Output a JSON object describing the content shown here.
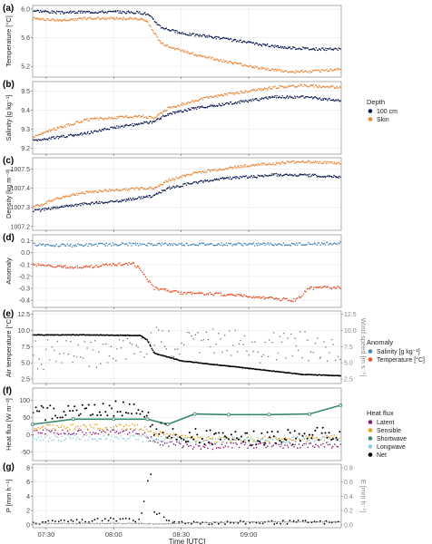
{
  "x_axis": {
    "label": "Time [UTC]",
    "ticks": [
      "07:30",
      "08:00",
      "08:30",
      "09:00"
    ],
    "range": [
      "07:24",
      "09:41"
    ]
  },
  "colors": {
    "depth_100cm": "#0d1a4f",
    "skin": "#e8873a",
    "salinity_anomaly": "#4a86b8",
    "temperature_anomaly": "#e8532a",
    "air_temperature": "#000000",
    "wind_speed": "#808080",
    "latent": "#8b1a7a",
    "sensible": "#e8a020",
    "shortwave": "#3a8a6a",
    "longwave": "#8ecfd8",
    "net": "#000000",
    "precip": "#000000",
    "evap": "#808080",
    "panel_border": "#9a9a9a",
    "grid": "#ececec"
  },
  "chart_data": [
    {
      "panel": "(a)",
      "type": "scatter",
      "ylabel": "Temperature [°C]",
      "yticks": [
        "5.2",
        "5.6",
        "6.0"
      ],
      "ylim": [
        5.05,
        6.05
      ],
      "series": [
        {
          "name": "100 cm",
          "x": [
            7.4,
            7.6,
            7.8,
            8.0,
            8.2,
            8.25,
            8.35,
            8.5,
            8.7,
            8.9,
            9.1,
            9.3,
            9.5,
            9.68
          ],
          "y": [
            5.98,
            5.95,
            5.96,
            5.96,
            5.95,
            5.93,
            5.75,
            5.66,
            5.62,
            5.56,
            5.5,
            5.46,
            5.44,
            5.44
          ]
        },
        {
          "name": "Skin",
          "x": [
            7.4,
            7.6,
            7.8,
            8.0,
            8.2,
            8.25,
            8.35,
            8.5,
            8.7,
            8.9,
            9.1,
            9.3,
            9.5,
            9.68
          ],
          "y": [
            5.87,
            5.84,
            5.87,
            5.87,
            5.86,
            5.82,
            5.52,
            5.42,
            5.32,
            5.24,
            5.17,
            5.12,
            5.13,
            5.16
          ]
        }
      ]
    },
    {
      "panel": "(b)",
      "type": "scatter",
      "ylabel": "Salinity [g kg⁻¹]",
      "yticks": [
        "9.2",
        "9.3",
        "9.4",
        "9.5"
      ],
      "ylim": [
        9.17,
        9.55
      ],
      "series": [
        {
          "name": "100 cm",
          "x": [
            7.4,
            7.6,
            7.8,
            8.0,
            8.2,
            8.3,
            8.4,
            8.6,
            8.8,
            9.0,
            9.2,
            9.4,
            9.68
          ],
          "y": [
            9.24,
            9.26,
            9.28,
            9.31,
            9.33,
            9.34,
            9.38,
            9.41,
            9.43,
            9.45,
            9.47,
            9.47,
            9.45
          ]
        },
        {
          "name": "Skin",
          "x": [
            7.4,
            7.6,
            7.8,
            8.0,
            8.2,
            8.3,
            8.4,
            8.6,
            8.8,
            9.0,
            9.2,
            9.4,
            9.68
          ],
          "y": [
            9.26,
            9.31,
            9.35,
            9.36,
            9.37,
            9.36,
            9.41,
            9.45,
            9.48,
            9.5,
            9.52,
            9.53,
            9.52
          ]
        }
      ]
    },
    {
      "panel": "(c)",
      "type": "scatter",
      "ylabel": "Density [kg m⁻³]",
      "yticks": [
        "1007.2",
        "1007.3",
        "1007.4",
        "1007.5"
      ],
      "ylim": [
        1007.18,
        1007.56
      ],
      "series": [
        {
          "name": "100 cm",
          "x": [
            7.4,
            7.6,
            7.8,
            8.0,
            8.2,
            8.3,
            8.4,
            8.6,
            8.8,
            9.0,
            9.2,
            9.4,
            9.68
          ],
          "y": [
            1007.28,
            1007.3,
            1007.32,
            1007.33,
            1007.35,
            1007.36,
            1007.4,
            1007.43,
            1007.45,
            1007.46,
            1007.47,
            1007.47,
            1007.46
          ]
        },
        {
          "name": "Skin",
          "x": [
            7.4,
            7.6,
            7.8,
            8.0,
            8.2,
            8.3,
            8.4,
            8.6,
            8.8,
            9.0,
            9.2,
            9.4,
            9.68
          ],
          "y": [
            1007.3,
            1007.35,
            1007.38,
            1007.39,
            1007.4,
            1007.4,
            1007.44,
            1007.48,
            1007.5,
            1007.52,
            1007.53,
            1007.54,
            1007.53
          ]
        }
      ]
    },
    {
      "panel": "(d)",
      "type": "scatter",
      "ylabel": "Anomaly",
      "yticks": [
        "-0.4",
        "-0.3",
        "-0.2",
        "-0.1",
        "0.0",
        "0.1"
      ],
      "ylim": [
        -0.46,
        0.15
      ],
      "series": [
        {
          "name": "Salinity [g kg⁻¹]",
          "x": [
            7.4,
            7.7,
            8.0,
            8.3,
            8.6,
            9.0,
            9.3,
            9.68
          ],
          "y": [
            0.07,
            0.06,
            0.07,
            0.07,
            0.07,
            0.07,
            0.07,
            0.08
          ]
        },
        {
          "name": "Temperature [°C]",
          "x": [
            7.4,
            7.6,
            7.8,
            8.0,
            8.15,
            8.2,
            8.3,
            8.5,
            8.8,
            9.1,
            9.35,
            9.45,
            9.68
          ],
          "y": [
            -0.1,
            -0.12,
            -0.12,
            -0.1,
            -0.09,
            -0.15,
            -0.3,
            -0.34,
            -0.35,
            -0.38,
            -0.4,
            -0.3,
            -0.29
          ]
        }
      ]
    },
    {
      "panel": "(e)",
      "type": "scatter",
      "ylabel": "Air temperature [°C]",
      "ylabel_right": "Wind speed [m s⁻¹]",
      "yticks": [
        "2.5",
        "5.0",
        "7.5",
        "10.0",
        "12.5"
      ],
      "ylim": [
        1.8,
        13.0
      ],
      "series": [
        {
          "name": "Air temperature",
          "axis": "left",
          "x": [
            7.4,
            7.8,
            8.2,
            8.25,
            8.3,
            8.5,
            8.8,
            9.1,
            9.4,
            9.68
          ],
          "y": [
            9.3,
            9.3,
            9.2,
            8.5,
            6.5,
            5.3,
            4.6,
            3.9,
            3.2,
            3.0
          ]
        },
        {
          "name": "Wind speed",
          "axis": "right",
          "x": [
            7.4,
            7.7,
            8.0,
            8.3,
            8.5,
            8.8,
            9.1,
            9.4,
            9.68
          ],
          "y": [
            6.5,
            6.0,
            6.7,
            8.5,
            7.6,
            8.2,
            7.3,
            7.6,
            6.8
          ]
        }
      ]
    },
    {
      "panel": "(f)",
      "type": "scatter",
      "ylabel": "Heat flux [W m⁻²]",
      "yticks": [
        "-50",
        "0",
        "50",
        "100"
      ],
      "ylim": [
        -75,
        135
      ],
      "series": [
        {
          "name": "Latent",
          "x": [
            7.4,
            7.8,
            8.2,
            8.3,
            8.6,
            9.0,
            9.4,
            9.68
          ],
          "y": [
            5,
            8,
            10,
            -20,
            -35,
            -30,
            -30,
            -30
          ]
        },
        {
          "name": "Sensible",
          "x": [
            7.4,
            7.8,
            8.2,
            8.3,
            8.6,
            9.0,
            9.4,
            9.68
          ],
          "y": [
            20,
            22,
            22,
            5,
            -15,
            -15,
            -10,
            -10
          ]
        },
        {
          "name": "Shortwave",
          "x": [
            7.4,
            7.7,
            8.0,
            8.25,
            8.4,
            8.6,
            8.85,
            9.15,
            9.45,
            9.68
          ],
          "y": [
            30,
            45,
            45,
            45,
            30,
            60,
            58,
            58,
            60,
            85
          ]
        },
        {
          "name": "Longwave",
          "x": [
            7.4,
            7.8,
            8.2,
            8.3,
            8.6,
            9.0,
            9.4,
            9.68
          ],
          "y": [
            -10,
            -10,
            -12,
            -15,
            -15,
            -15,
            -15,
            -15
          ]
        },
        {
          "name": "Net",
          "x": [
            7.4,
            7.7,
            8.0,
            8.2,
            8.3,
            8.5,
            8.8,
            9.1,
            9.4,
            9.68
          ],
          "y": [
            60,
            70,
            75,
            75,
            20,
            0,
            -10,
            -10,
            -5,
            5
          ]
        }
      ]
    },
    {
      "panel": "(g)",
      "type": "scatter",
      "ylabel": "P [mm h⁻¹]",
      "ylabel_right": "E [mm h⁻¹]",
      "yticks": [
        "0",
        "2",
        "4",
        "6",
        "8"
      ],
      "yticks_right": [
        "0.0",
        "0.2",
        "0.4",
        "0.6",
        "0.8"
      ],
      "ylim": [
        -0.4,
        8.5
      ],
      "series": [
        {
          "name": "P",
          "axis": "left",
          "x": [
            7.4,
            7.7,
            8.0,
            8.2,
            8.27,
            8.3,
            8.4,
            8.7,
            9.0,
            9.4,
            9.68
          ],
          "y": [
            0.2,
            0.5,
            0.8,
            0.6,
            7.8,
            2.0,
            0.4,
            0.3,
            0.3,
            0.4,
            0.3
          ]
        },
        {
          "name": "E",
          "axis": "right",
          "x": [
            7.4,
            7.8,
            8.2,
            8.3,
            8.6,
            9.0,
            9.4,
            9.68
          ],
          "y": [
            0.02,
            0.02,
            0.02,
            0.01,
            0.03,
            0.04,
            0.04,
            0.04
          ]
        }
      ]
    }
  ],
  "legends": [
    {
      "title": "Depth",
      "items": [
        {
          "label": "100 cm",
          "color": "#0d1a4f"
        },
        {
          "label": "Skin",
          "color": "#e8873a"
        }
      ]
    },
    {
      "title": "Anomaly",
      "items": [
        {
          "label": "Salinity [g kg⁻¹]",
          "color": "#4a86b8"
        },
        {
          "label": "Temperature [°C]",
          "color": "#e8532a"
        }
      ]
    },
    {
      "title": "Heat flux",
      "items": [
        {
          "label": "Latent",
          "color": "#8b1a7a"
        },
        {
          "label": "Sensible",
          "color": "#e8a020"
        },
        {
          "label": "Shortwave",
          "color": "#3a8a6a"
        },
        {
          "label": "Longwave",
          "color": "#8ecfd8"
        },
        {
          "label": "Net",
          "color": "#000000"
        }
      ]
    }
  ]
}
